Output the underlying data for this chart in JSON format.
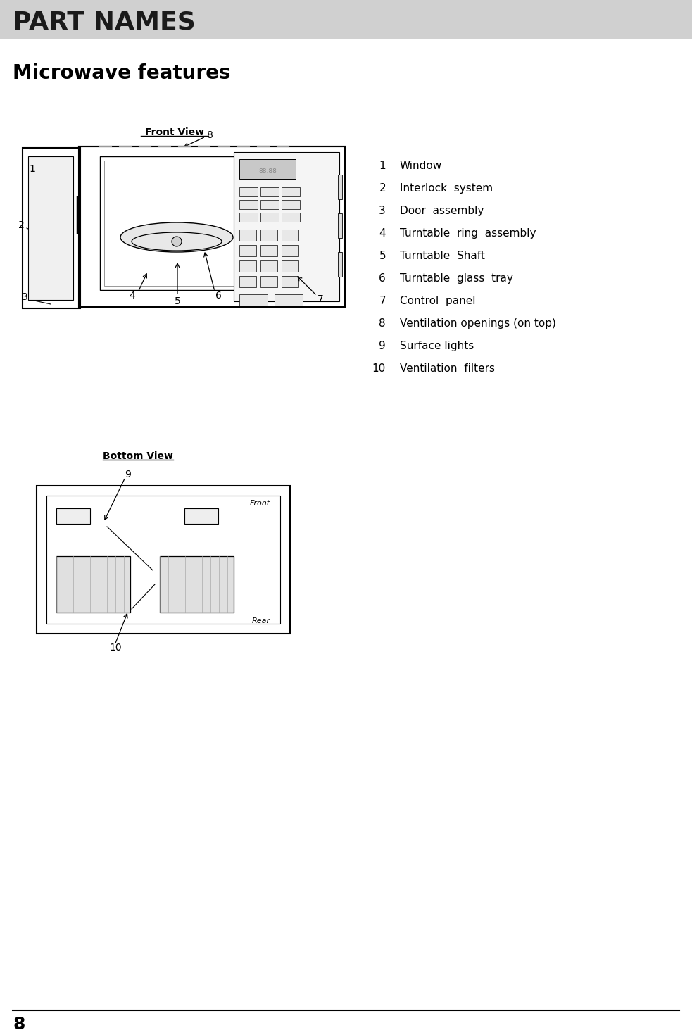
{
  "page_bg": "#ffffff",
  "header_bg": "#d0d0d0",
  "header_text": "PART NAMES",
  "header_text_color": "#1a1a1a",
  "section_title": "Microwave features",
  "front_view_label": "Front View",
  "bottom_view_label": "Bottom View",
  "parts_list": [
    {
      "num": "1",
      "name": "Window"
    },
    {
      "num": "2",
      "name": "Interlock  system"
    },
    {
      "num": "3",
      "name": "Door  assembly"
    },
    {
      "num": "4",
      "name": "Turntable  ring  assembly"
    },
    {
      "num": "5",
      "name": "Turntable  Shaft"
    },
    {
      "num": "6",
      "name": "Turntable  glass  tray"
    },
    {
      "num": "7",
      "name": "Control  panel"
    },
    {
      "num": "8",
      "name": "Ventilation openings (on top)"
    },
    {
      "num": "9",
      "name": "Surface lights"
    },
    {
      "num": "10",
      "name": "Ventilation  filters"
    }
  ],
  "page_number": "8",
  "line_color": "#000000",
  "label_color": "#000000"
}
